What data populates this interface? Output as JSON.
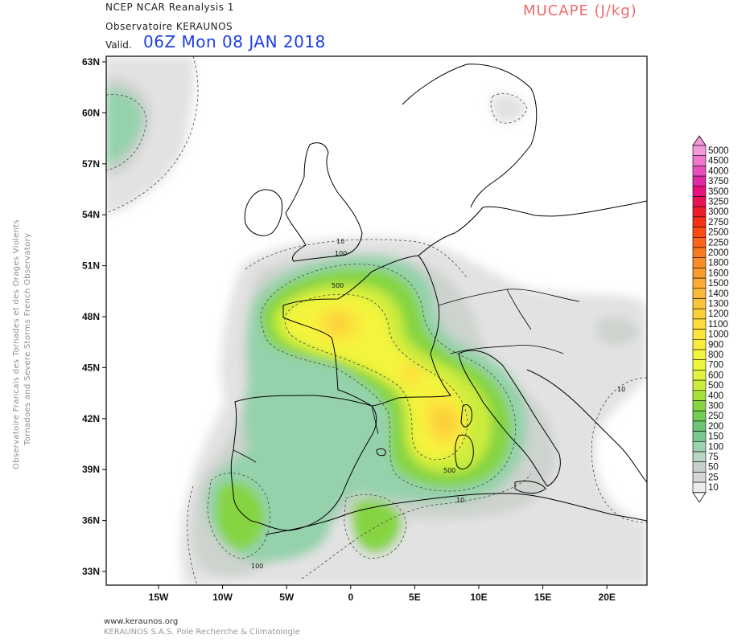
{
  "header": {
    "line1": "NCEP NCAR Reanalysis 1",
    "line2": "Observatoire KERAUNOS",
    "valid_label": "Valid.",
    "valid_time": "06Z Mon 08 JAN 2018",
    "parameter": "MUCAPE (J/kg)"
  },
  "side_text": {
    "line1": "Observatoire Francais des Tornades et des Orages Violents",
    "line2": "Tornadoes and Severe Storms French Observatory"
  },
  "footer": {
    "line1": "www.keraunos.org",
    "line2": "KERAUNOS S.A.S. Pole Recherche & Climatologie"
  },
  "map": {
    "lat_labels": [
      "63N",
      "60N",
      "57N",
      "54N",
      "51N",
      "48N",
      "45N",
      "42N",
      "39N",
      "36N",
      "33N"
    ],
    "lon_labels": [
      "15W",
      "10W",
      "5W",
      "0",
      "5E",
      "10E",
      "15E",
      "20E"
    ],
    "contour_labels": [
      "10",
      "100",
      "500",
      "500",
      "10",
      "10",
      "100"
    ]
  },
  "legend": {
    "levels": [
      "5000",
      "4500",
      "4000",
      "3750",
      "3500",
      "3250",
      "3000",
      "2750",
      "2500",
      "2250",
      "2000",
      "1800",
      "1600",
      "1500",
      "1400",
      "1300",
      "1200",
      "1100",
      "1000",
      "900",
      "800",
      "700",
      "600",
      "500",
      "400",
      "300",
      "250",
      "200",
      "150",
      "100",
      "75",
      "50",
      "25",
      "10"
    ],
    "colors": [
      "#f59ad8",
      "#ef78cc",
      "#e64fbc",
      "#de2aa4",
      "#e6127e",
      "#e81257",
      "#ef1c2c",
      "#f53014",
      "#ff4a12",
      "#ff6418",
      "#fa7a1e",
      "#fa8c28",
      "#fa9b2d",
      "#fcab34",
      "#fcb83a",
      "#fcc23c",
      "#fcd03a",
      "#fcdc3a",
      "#fce43c",
      "#f8ec3a",
      "#f4f43c",
      "#eef63c",
      "#e2f23e",
      "#ccec3c",
      "#a8e03a",
      "#86d443",
      "#72cc58",
      "#6cc474",
      "#78c890",
      "#9cd2b0",
      "#b8d4c2",
      "#c6cfc9",
      "#d6d6d6",
      "#ececec"
    ]
  },
  "map_colors": {
    "c10": "#e2e2e2",
    "c25": "#cdd3ce",
    "c100": "#95d2ac",
    "c150": "#74c58c",
    "c250": "#86d443",
    "c500": "#ccec3c",
    "c700": "#f4f43c",
    "c900": "#fce43c",
    "c1000": "#fcd03a"
  }
}
